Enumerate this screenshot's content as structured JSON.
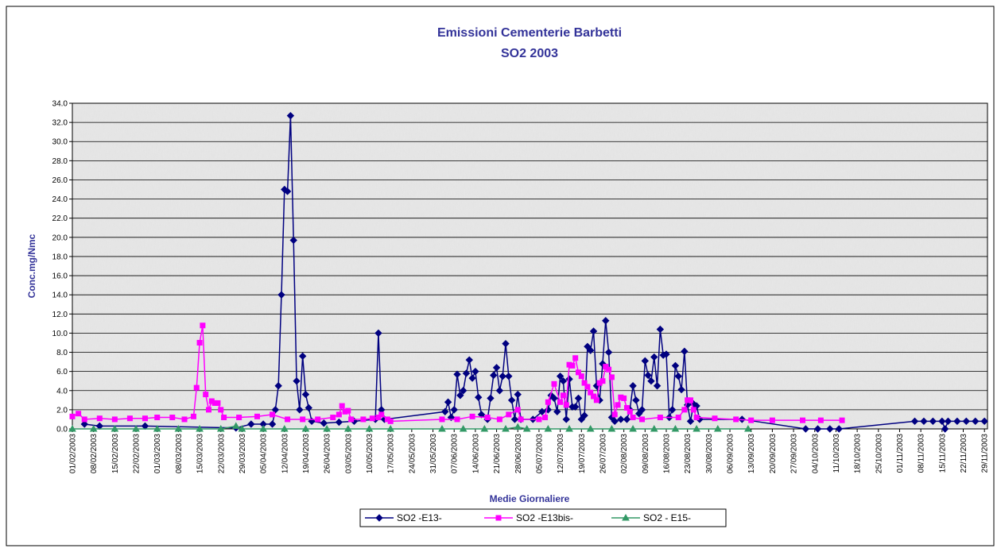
{
  "chart_data": {
    "type": "line",
    "title": "Emissioni Cementerie Barbetti",
    "subtitle": "SO2  2003",
    "xlabel": "Medie Giornaliere",
    "ylabel": "Conc.mg/Nmc",
    "xlim": [
      "01/02/2003",
      "30/11/2003"
    ],
    "xticks": [
      "01/02/2003",
      "08/02/2003",
      "15/02/2003",
      "22/02/2003",
      "01/03/2003",
      "08/03/2003",
      "15/03/2003",
      "22/03/2003",
      "29/03/2003",
      "05/04/2003",
      "12/04/2003",
      "19/04/2003",
      "26/04/2003",
      "03/05/2003",
      "10/05/2003",
      "17/05/2003",
      "24/05/2003",
      "31/05/2003",
      "07/06/2003",
      "14/06/2003",
      "21/06/2003",
      "28/06/2003",
      "05/07/2003",
      "12/07/2003",
      "19/07/2003",
      "26/07/2003",
      "02/08/2003",
      "09/08/2003",
      "16/08/2003",
      "23/08/2003",
      "30/08/2003",
      "06/09/2003",
      "13/09/2003",
      "20/09/2003",
      "27/09/2003",
      "04/10/2003",
      "11/10/2003",
      "18/10/2003",
      "25/10/2003",
      "01/11/2003",
      "08/11/2003",
      "15/11/2003",
      "22/11/2003",
      "29/11/2003"
    ],
    "ylim": [
      0,
      34
    ],
    "yticks": [
      {
        "value": 0,
        "label": "0.0"
      },
      {
        "value": 2,
        "label": "2.0"
      },
      {
        "value": 4,
        "label": "4.0"
      },
      {
        "value": 6,
        "label": "6.0"
      },
      {
        "value": 8,
        "label": "8.0"
      },
      {
        "value": 10,
        "label": "10.0"
      },
      {
        "value": 12,
        "label": "12.0"
      },
      {
        "value": 14,
        "label": "14.0"
      },
      {
        "value": 16,
        "label": "16.0"
      },
      {
        "value": 18,
        "label": "18.0"
      },
      {
        "value": 20,
        "label": "20.0"
      },
      {
        "value": 22,
        "label": "22.0"
      },
      {
        "value": 24,
        "label": "24.0"
      },
      {
        "value": 26,
        "label": "26.0"
      },
      {
        "value": 28,
        "label": "28.0"
      },
      {
        "value": 30,
        "label": "30.0"
      },
      {
        "value": 32,
        "label": "32.0"
      },
      {
        "value": 34,
        "label": "34.0"
      }
    ],
    "grid": true,
    "legend": "bottom",
    "series": [
      {
        "name": "SO2 -E13-",
        "color": "#000080",
        "marker": "diamond",
        "x": [
          "05/02/2003",
          "10/02/2003",
          "25/02/2003",
          "27/03/2003",
          "01/04/2003",
          "05/04/2003",
          "08/04/2003",
          "09/04/2003",
          "10/04/2003",
          "11/04/2003",
          "12/04/2003",
          "13/04/2003",
          "14/04/2003",
          "15/04/2003",
          "16/04/2003",
          "17/04/2003",
          "18/04/2003",
          "19/04/2003",
          "20/04/2003",
          "21/04/2003",
          "25/04/2003",
          "30/04/2003",
          "05/05/2003",
          "12/05/2003",
          "13/05/2003",
          "14/05/2003",
          "15/05/2003",
          "04/06/2003",
          "05/06/2003",
          "06/06/2003",
          "07/06/2003",
          "08/06/2003",
          "09/06/2003",
          "10/06/2003",
          "11/06/2003",
          "12/06/2003",
          "13/06/2003",
          "14/06/2003",
          "15/06/2003",
          "16/06/2003",
          "18/06/2003",
          "19/06/2003",
          "20/06/2003",
          "21/06/2003",
          "22/06/2003",
          "23/06/2003",
          "24/06/2003",
          "25/06/2003",
          "26/06/2003",
          "27/06/2003",
          "28/06/2003",
          "29/06/2003",
          "03/07/2003",
          "06/07/2003",
          "08/07/2003",
          "09/07/2003",
          "10/07/2003",
          "11/07/2003",
          "12/07/2003",
          "13/07/2003",
          "14/07/2003",
          "15/07/2003",
          "16/07/2003",
          "17/07/2003",
          "18/07/2003",
          "19/07/2003",
          "20/07/2003",
          "21/07/2003",
          "22/07/2003",
          "23/07/2003",
          "24/07/2003",
          "25/07/2003",
          "26/07/2003",
          "27/07/2003",
          "28/07/2003",
          "29/07/2003",
          "30/07/2003",
          "01/08/2003",
          "03/08/2003",
          "04/08/2003",
          "05/08/2003",
          "06/08/2003",
          "07/08/2003",
          "08/08/2003",
          "09/08/2003",
          "10/08/2003",
          "11/08/2003",
          "12/08/2003",
          "13/08/2003",
          "14/08/2003",
          "15/08/2003",
          "16/08/2003",
          "17/08/2003",
          "18/08/2003",
          "19/08/2003",
          "20/08/2003",
          "21/08/2003",
          "22/08/2003",
          "23/08/2003",
          "24/08/2003",
          "25/08/2003",
          "26/08/2003",
          "27/08/2003",
          "10/09/2003",
          "01/10/2003",
          "05/10/2003",
          "09/10/2003",
          "12/10/2003",
          "06/11/2003",
          "09/11/2003",
          "12/11/2003",
          "15/11/2003",
          "16/11/2003",
          "17/11/2003",
          "20/11/2003",
          "23/11/2003",
          "26/11/2003",
          "29/11/2003"
        ],
        "values": [
          0.5,
          0.3,
          0.3,
          0.1,
          0.5,
          0.5,
          0.5,
          2.0,
          4.5,
          14.0,
          25.0,
          24.8,
          32.7,
          19.7,
          5.0,
          2.0,
          7.6,
          3.6,
          2.2,
          0.8,
          0.6,
          0.7,
          0.8,
          1.0,
          10.0,
          2.0,
          1.0,
          1.8,
          2.8,
          1.2,
          2.0,
          5.7,
          3.5,
          4.0,
          5.8,
          7.2,
          5.3,
          6.0,
          3.3,
          1.5,
          1.0,
          3.2,
          5.6,
          6.4,
          4.0,
          5.5,
          8.9,
          5.5,
          3.0,
          1.0,
          3.6,
          1.0,
          1.0,
          1.8,
          2.0,
          3.5,
          3.2,
          1.8,
          5.5,
          5.0,
          1.0,
          5.2,
          2.3,
          2.3,
          3.2,
          1.0,
          1.4,
          8.6,
          8.2,
          10.2,
          4.5,
          3.0,
          6.8,
          11.3,
          8.0,
          1.2,
          0.8,
          1.0,
          1.0,
          2.0,
          4.5,
          3.0,
          1.6,
          2.0,
          7.1,
          5.6,
          5.0,
          7.5,
          4.5,
          10.4,
          7.7,
          7.8,
          1.2,
          2.0,
          6.6,
          5.5,
          4.1,
          8.1,
          2.5,
          0.8,
          2.6,
          2.4,
          1.0,
          1.0,
          0.0,
          0.0,
          0.0,
          0.0,
          0.8,
          0.8,
          0.8,
          0.8,
          0.0,
          0.8,
          0.8,
          0.8,
          0.8,
          0.8
        ]
      },
      {
        "name": "SO2 -E13bis-",
        "color": "#ff00ff",
        "marker": "square",
        "x": [
          "01/02/2003",
          "03/02/2003",
          "05/02/2003",
          "10/02/2003",
          "15/02/2003",
          "20/02/2003",
          "25/02/2003",
          "01/03/2003",
          "06/03/2003",
          "10/03/2003",
          "13/03/2003",
          "14/03/2003",
          "15/03/2003",
          "16/03/2003",
          "17/03/2003",
          "18/03/2003",
          "19/03/2003",
          "20/03/2003",
          "21/03/2003",
          "22/03/2003",
          "23/03/2003",
          "28/03/2003",
          "03/04/2003",
          "08/04/2003",
          "13/04/2003",
          "18/04/2003",
          "23/04/2003",
          "28/04/2003",
          "30/04/2003",
          "01/05/2003",
          "02/05/2003",
          "03/05/2003",
          "04/05/2003",
          "08/05/2003",
          "11/05/2003",
          "13/05/2003",
          "14/05/2003",
          "16/05/2003",
          "17/05/2003",
          "03/06/2003",
          "08/06/2003",
          "13/06/2003",
          "18/06/2003",
          "22/06/2003",
          "25/06/2003",
          "28/06/2003",
          "29/06/2003",
          "05/07/2003",
          "07/07/2003",
          "08/07/2003",
          "10/07/2003",
          "12/07/2003",
          "13/07/2003",
          "14/07/2003",
          "15/07/2003",
          "16/07/2003",
          "17/07/2003",
          "18/07/2003",
          "19/07/2003",
          "20/07/2003",
          "21/07/2003",
          "22/07/2003",
          "23/07/2003",
          "24/07/2003",
          "25/07/2003",
          "26/07/2003",
          "27/07/2003",
          "28/07/2003",
          "29/07/2003",
          "30/07/2003",
          "31/07/2003",
          "01/08/2003",
          "02/08/2003",
          "03/08/2003",
          "04/08/2003",
          "05/08/2003",
          "08/08/2003",
          "14/08/2003",
          "20/08/2003",
          "22/08/2003",
          "23/08/2003",
          "24/08/2003",
          "25/08/2003",
          "26/08/2003",
          "01/09/2003",
          "08/09/2003",
          "13/09/2003",
          "20/09/2003",
          "30/09/2003",
          "06/10/2003",
          "13/10/2003"
        ],
        "values": [
          1.3,
          1.6,
          1.0,
          1.1,
          1.0,
          1.1,
          1.1,
          1.2,
          1.2,
          1.0,
          1.3,
          4.3,
          9.0,
          10.8,
          3.6,
          2.0,
          2.9,
          2.7,
          2.7,
          2.0,
          1.2,
          1.2,
          1.3,
          1.5,
          1.0,
          1.0,
          1.0,
          1.2,
          1.5,
          2.4,
          1.8,
          1.9,
          1.0,
          1.0,
          1.1,
          1.2,
          1.5,
          1.0,
          0.8,
          1.0,
          1.0,
          1.3,
          1.2,
          1.0,
          1.5,
          2.0,
          1.0,
          1.0,
          1.2,
          2.8,
          4.7,
          2.8,
          3.5,
          2.5,
          6.7,
          6.6,
          7.4,
          5.9,
          5.5,
          4.8,
          4.4,
          3.8,
          3.4,
          3.0,
          4.8,
          5.0,
          6.5,
          6.2,
          5.4,
          1.5,
          2.5,
          3.3,
          3.2,
          2.2,
          1.8,
          1.2,
          1.0,
          1.2,
          1.2,
          2.0,
          3.0,
          3.0,
          2.0,
          1.2,
          1.1,
          1.0,
          0.9,
          0.9,
          0.9,
          0.9,
          0.9
        ]
      },
      {
        "name": "SO2 - E15-",
        "color": "#339966",
        "marker": "triangle",
        "x": [
          "01/02/2003",
          "08/02/2003",
          "15/02/2003",
          "22/02/2003",
          "01/03/2003",
          "08/03/2003",
          "15/03/2003",
          "22/03/2003",
          "27/03/2003",
          "29/03/2003",
          "05/04/2003",
          "12/04/2003",
          "19/04/2003",
          "26/04/2003",
          "03/05/2003",
          "10/05/2003",
          "17/05/2003",
          "03/06/2003",
          "10/06/2003",
          "17/06/2003",
          "24/06/2003",
          "28/06/2003",
          "01/07/2003",
          "08/07/2003",
          "15/07/2003",
          "22/07/2003",
          "29/07/2003",
          "05/08/2003",
          "12/08/2003",
          "19/08/2003",
          "26/08/2003",
          "02/09/2003",
          "12/09/2003"
        ],
        "values": [
          0,
          0,
          0,
          0,
          0,
          0,
          0,
          0,
          0.3,
          0,
          0,
          0,
          0,
          0,
          0,
          0,
          0,
          0,
          0,
          0,
          0,
          0.2,
          0,
          0,
          0,
          0,
          0,
          0,
          0,
          0,
          0,
          0,
          0
        ]
      }
    ]
  }
}
